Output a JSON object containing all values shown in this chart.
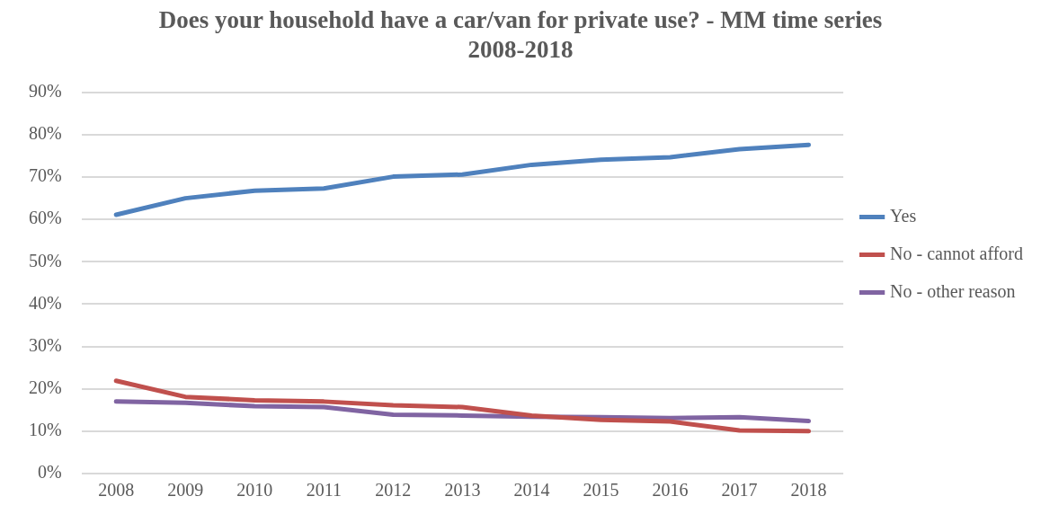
{
  "chart_data": {
    "type": "line",
    "title": "Does your household have a car/van for private use? - MM time series 2008-2018",
    "categories": [
      "2008",
      "2009",
      "2010",
      "2011",
      "2012",
      "2013",
      "2014",
      "2015",
      "2016",
      "2017",
      "2018"
    ],
    "series": [
      {
        "name": "Yes",
        "color": "#4f81bd",
        "values": [
          61.1,
          65.0,
          66.8,
          67.3,
          70.1,
          70.6,
          72.9,
          74.1,
          74.7,
          76.6,
          77.6
        ]
      },
      {
        "name": "No - cannot afford",
        "color": "#c0504d",
        "values": [
          21.9,
          18.1,
          17.3,
          17.0,
          16.1,
          15.7,
          13.7,
          12.7,
          12.3,
          10.2,
          10.0
        ]
      },
      {
        "name": "No - other reason",
        "color": "#8064a2",
        "values": [
          17.0,
          16.7,
          15.9,
          15.7,
          13.9,
          13.7,
          13.4,
          13.3,
          13.1,
          13.3,
          12.4
        ]
      }
    ],
    "ylim": [
      0,
      90
    ],
    "yticks": [
      {
        "value": 0,
        "label": "0%"
      },
      {
        "value": 10,
        "label": "10%"
      },
      {
        "value": 20,
        "label": "20%"
      },
      {
        "value": 30,
        "label": "30%"
      },
      {
        "value": 40,
        "label": "40%"
      },
      {
        "value": 50,
        "label": "50%"
      },
      {
        "value": 60,
        "label": "60%"
      },
      {
        "value": 70,
        "label": "70%"
      },
      {
        "value": 80,
        "label": "80%"
      },
      {
        "value": 90,
        "label": "90%"
      }
    ],
    "grid": "y",
    "legend": "right",
    "marker": "none",
    "line_style": "solid"
  }
}
